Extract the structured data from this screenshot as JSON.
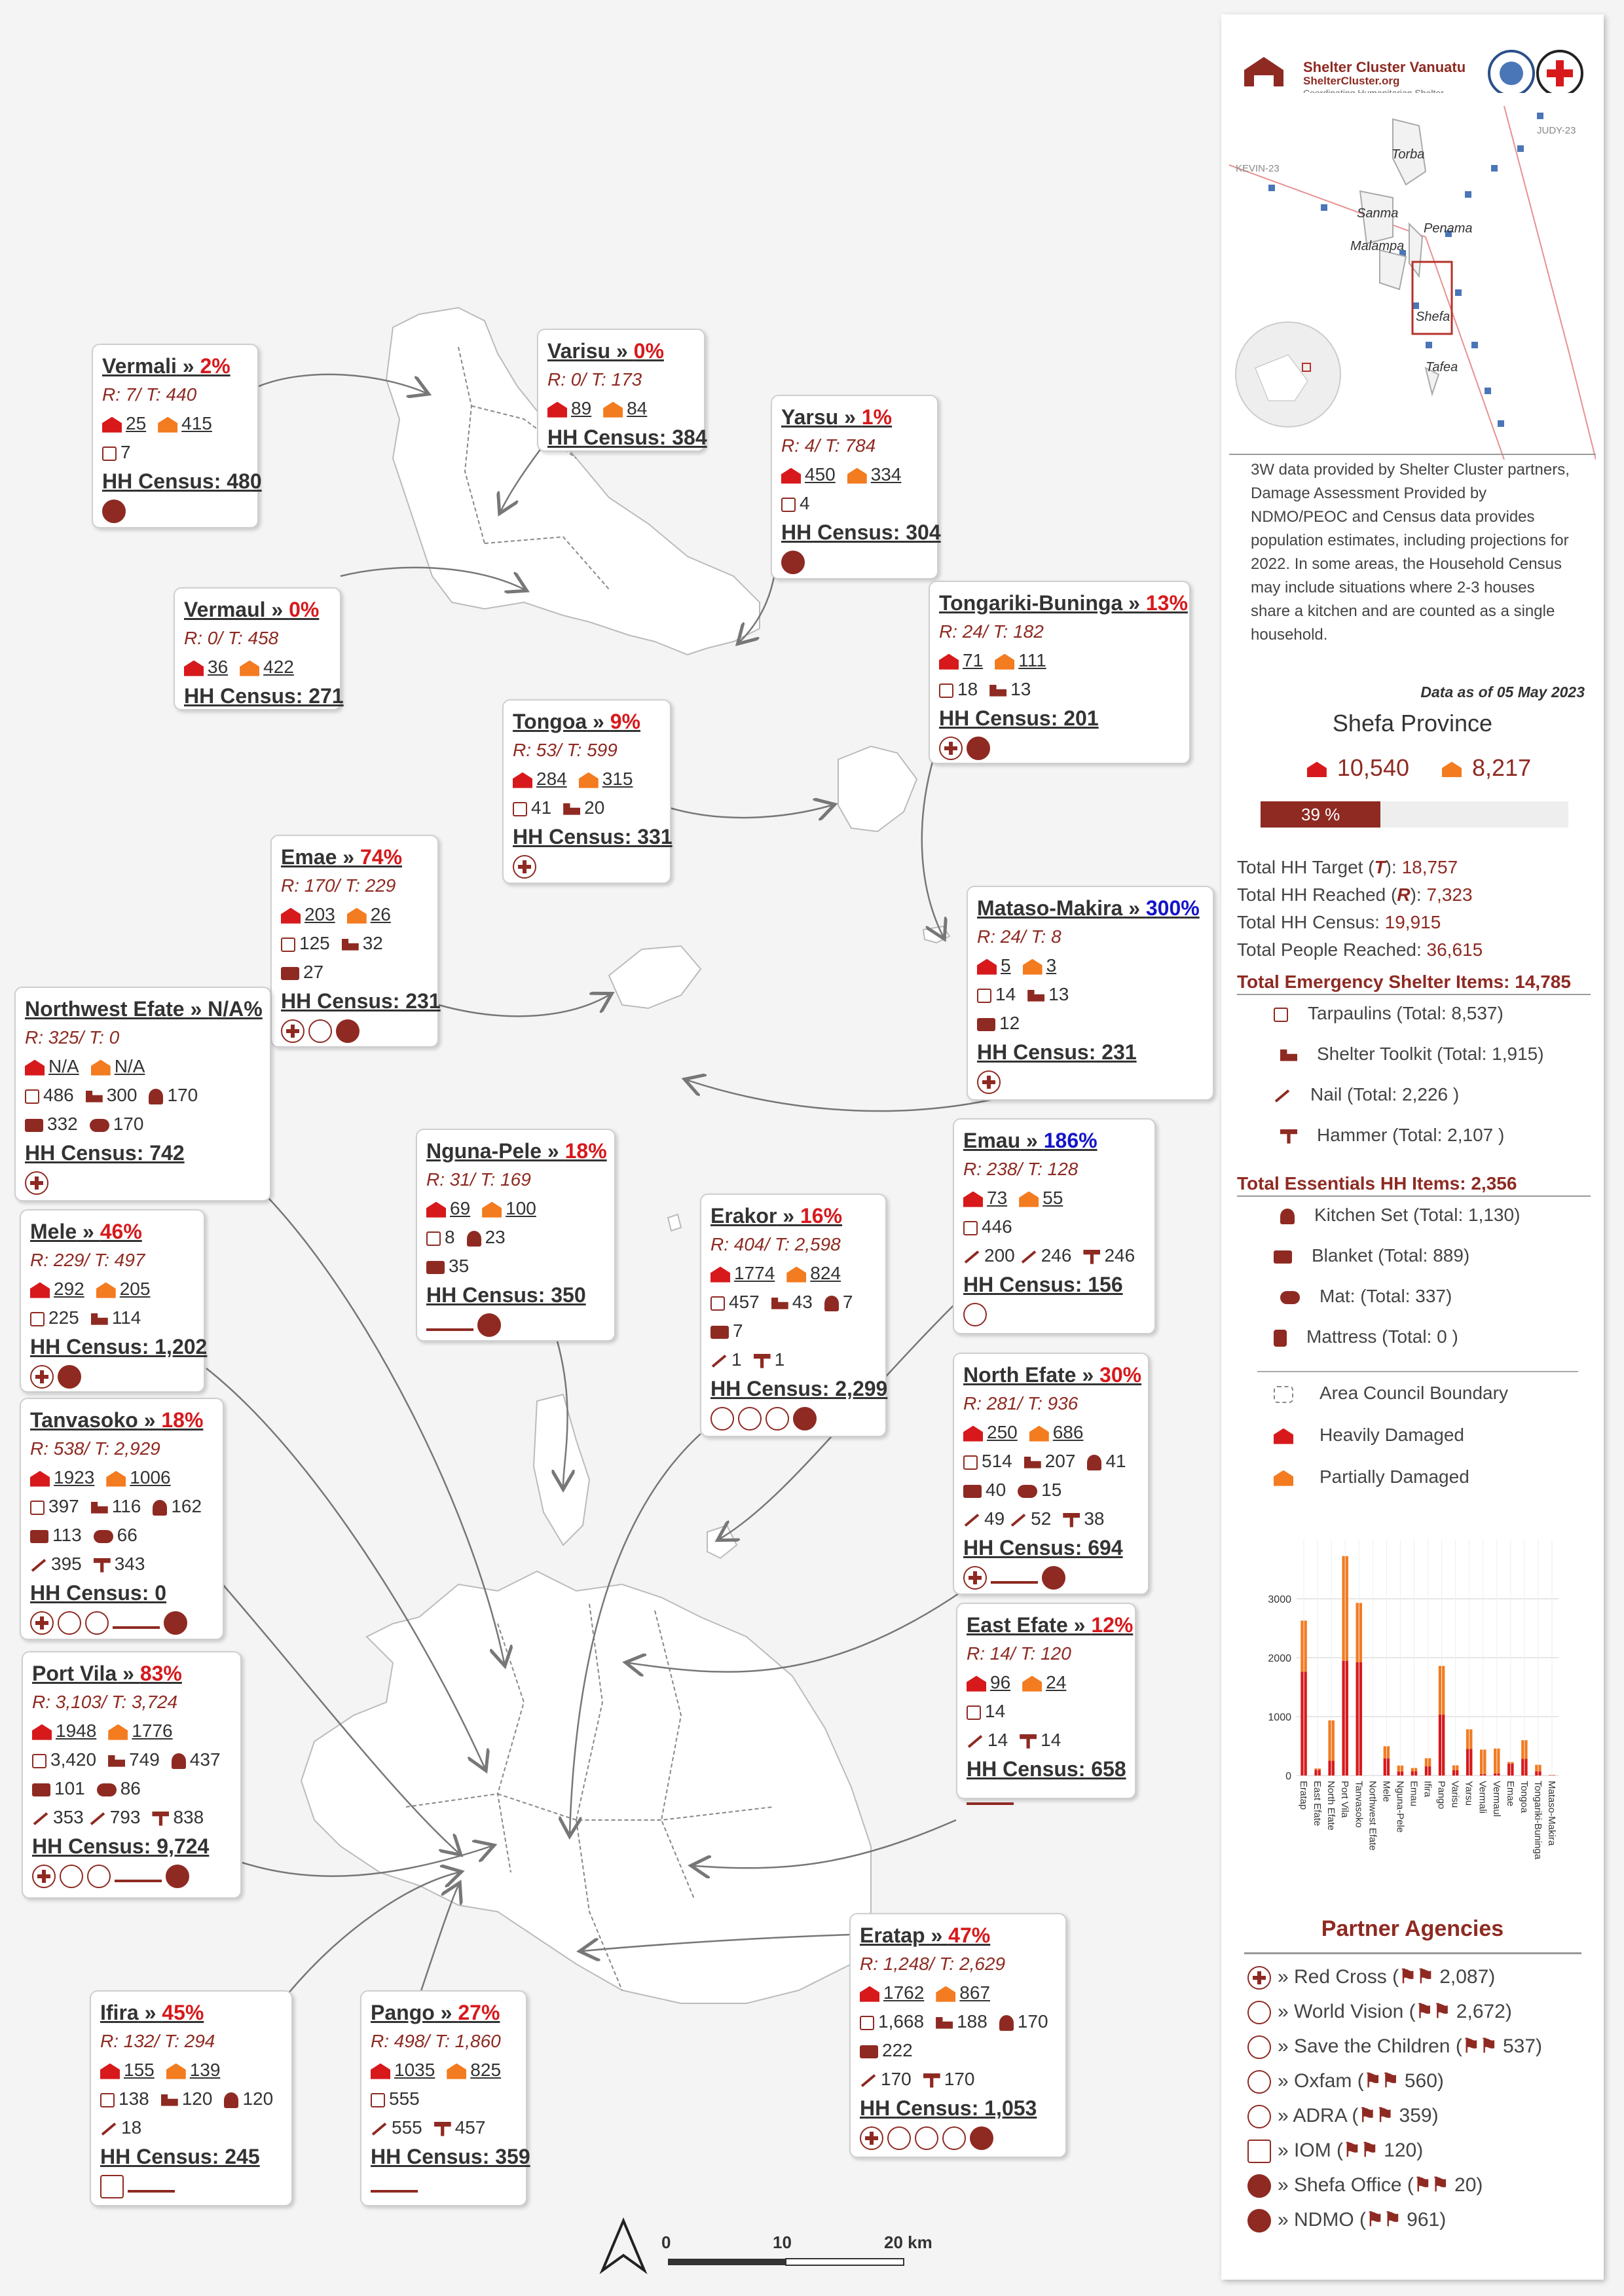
{
  "cards": [
    {
      "id": "vermali",
      "title": "Vermali",
      "pct": "2%",
      "rt": "R: 7/ T: 440",
      "hd": "25",
      "pd": "415",
      "rows": [
        [
          "tp",
          "7"
        ]
      ],
      "census": "HH Census: 480",
      "logos": [
        "nd"
      ]
    },
    {
      "id": "varisu",
      "title": "Varisu",
      "pct": "0%",
      "rt": "R: 0/ T: 173",
      "hd": "89",
      "pd": "84",
      "rows": [],
      "census": "HH Census: 384",
      "logos": []
    },
    {
      "id": "yarsu",
      "title": "Yarsu",
      "pct": "1%",
      "rt": "R: 4/ T: 784",
      "hd": "450",
      "pd": "334",
      "rows": [
        [
          "tp",
          "4"
        ]
      ],
      "census": "HH Census: 304",
      "logos": [
        "nd"
      ]
    },
    {
      "id": "vermaul",
      "title": "Vermaul",
      "pct": "0%",
      "rt": "R: 0/ T: 458",
      "hd": "36",
      "pd": "422",
      "rows": [],
      "census": "HH Census: 271",
      "logos": []
    },
    {
      "id": "tongariki",
      "title": "Tongariki-Buninga",
      "pct": "13%",
      "rt": "R: 24/ T: 182",
      "hd": "71",
      "pd": "111",
      "rows": [
        [
          "tp",
          "18",
          "tk",
          "13"
        ]
      ],
      "census": "HH Census: 201",
      "logos": [
        "rc",
        "nd"
      ]
    },
    {
      "id": "tongoa",
      "title": "Tongoa",
      "pct": "9%",
      "rt": "R: 53/ T: 599",
      "hd": "284",
      "pd": "315",
      "rows": [
        [
          "tp",
          "41",
          "tk",
          "20"
        ]
      ],
      "census": "HH Census: 331",
      "logos": [
        "rc"
      ]
    },
    {
      "id": "emae",
      "title": "Emae",
      "pct": "74%",
      "rt": "R: 170/ T: 229",
      "hd": "203",
      "pd": "26",
      "rows": [
        [
          "tp",
          "125",
          "tk",
          "32"
        ],
        [
          "bk",
          "27"
        ]
      ],
      "census": "HH Census: 231",
      "logos": [
        "rc",
        "ad",
        "nd"
      ]
    },
    {
      "id": "mataso",
      "title": "Mataso-Makira",
      "pct": "300%",
      "blue": true,
      "rt": "R: 24/ T: 8",
      "hd": "5",
      "pd": "3",
      "rows": [
        [
          "tp",
          "14",
          "tk",
          "13"
        ],
        [
          "bk",
          "12"
        ]
      ],
      "census": "HH Census: 231",
      "logos": [
        "rc"
      ]
    },
    {
      "id": "nwefate",
      "title": "Northwest Efate",
      "pct": "N/A%",
      "black": true,
      "rt": "R: 325/ T: 0",
      "hd": "N/A",
      "pd": "N/A",
      "rows": [
        [
          "tp",
          "486",
          "tk",
          "300",
          "ks",
          "170"
        ],
        [
          "bk",
          "332",
          "mt",
          "170"
        ]
      ],
      "census": "HH Census: 742",
      "logos": [
        "rc"
      ]
    },
    {
      "id": "emau",
      "title": "Emau",
      "pct": "186%",
      "blue": true,
      "rt": "R: 238/ T: 128",
      "hd": "73",
      "pd": "55",
      "rows": [
        [
          "tp",
          "446"
        ],
        [
          "nl",
          "200",
          "nl",
          "246",
          "hm",
          "246"
        ]
      ],
      "census": "HH Census: 156",
      "logos": [
        "ad"
      ]
    },
    {
      "id": "nguna",
      "title": "Nguna-Pele",
      "pct": "18%",
      "rt": "R: 31/ T: 169",
      "hd": "69",
      "pd": "100",
      "rows": [
        [
          "tp",
          "8",
          "ks",
          "23"
        ],
        [
          "bk",
          "35"
        ]
      ],
      "census": "HH Census: 350",
      "logos": [
        "wd",
        "nd"
      ]
    },
    {
      "id": "erakor",
      "title": "Erakor",
      "pct": "16%",
      "rt": "R: 404/ T: 2,598",
      "hd": "1774",
      "pd": "824",
      "rows": [
        [
          "tp",
          "457",
          "tk",
          "43",
          "ks",
          "7"
        ],
        [
          "bk",
          "7"
        ],
        [
          "nl",
          "1",
          "hm",
          "1"
        ]
      ],
      "census": "HH Census: 2,299",
      "logos": [
        "ox",
        "sc",
        "ad",
        "nd"
      ]
    },
    {
      "id": "mele",
      "title": "Mele",
      "pct": "46%",
      "rt": "R: 229/ T: 497",
      "hd": "292",
      "pd": "205",
      "rows": [
        [
          "tp",
          "225",
          "tk",
          "114"
        ]
      ],
      "census": "HH Census: 1,202",
      "logos": [
        "rc",
        "nd"
      ]
    },
    {
      "id": "nefate",
      "title": "North Efate",
      "pct": "30%",
      "rt": "R: 281/ T: 936",
      "hd": "250",
      "pd": "686",
      "rows": [
        [
          "tp",
          "514",
          "tk",
          "207",
          "ks",
          "41"
        ],
        [
          "bk",
          "40",
          "mt",
          "15"
        ],
        [
          "nl",
          "49",
          "nl",
          "52",
          "hm",
          "38"
        ]
      ],
      "census": "HH Census: 694",
      "logos": [
        "rc",
        "wd",
        "nd"
      ]
    },
    {
      "id": "tanvasoko",
      "title": "Tanvasoko",
      "pct": "18%",
      "rt": "R: 538/ T: 2,929",
      "hd": "1923",
      "pd": "1006",
      "rows": [
        [
          "tp",
          "397",
          "tk",
          "116",
          "ks",
          "162"
        ],
        [
          "bk",
          "113",
          "mt",
          "66"
        ],
        [
          "nl",
          "395",
          "hm",
          "343"
        ]
      ],
      "census": "HH Census: 0",
      "logos": [
        "rc",
        "sc",
        "ad",
        "wd",
        "nd"
      ]
    },
    {
      "id": "eefate",
      "title": "East Efate",
      "pct": "12%",
      "rt": "R: 14/ T: 120",
      "hd": "96",
      "pd": "24",
      "rows": [
        [
          "tp",
          "14"
        ],
        [
          "nl",
          "14",
          "hm",
          "14"
        ]
      ],
      "census": "HH Census: 658",
      "logos": [
        "wd"
      ]
    },
    {
      "id": "portvila",
      "title": "Port Vila",
      "pct": "83%",
      "rt": "R: 3,103/ T: 3,724",
      "hd": "1948",
      "pd": "1776",
      "rows": [
        [
          "tp",
          "3,420",
          "tk",
          "749",
          "ks",
          "437"
        ],
        [
          "bk",
          "101",
          "mt",
          "86"
        ],
        [
          "nl",
          "353",
          "nl",
          "793",
          "hm",
          "838"
        ]
      ],
      "census": "HH Census: 9,724",
      "logos": [
        "rc",
        "ox",
        "sc",
        "wd",
        "nd"
      ]
    },
    {
      "id": "eratap",
      "title": "Eratap",
      "pct": "47%",
      "rt": "R: 1,248/ T: 2,629",
      "hd": "1762",
      "pd": "867",
      "rows": [
        [
          "tp",
          "1,668",
          "tk",
          "188",
          "ks",
          "170"
        ],
        [
          "bk",
          "222"
        ],
        [
          "nl",
          "170",
          "hm",
          "170"
        ]
      ],
      "census": "HH Census: 1,053",
      "logos": [
        "rc",
        "ox",
        "sc",
        "ad",
        "nd"
      ]
    },
    {
      "id": "ifira",
      "title": "Ifira",
      "pct": "45%",
      "rt": "R: 132/ T: 294",
      "hd": "155",
      "pd": "139",
      "rows": [
        [
          "tp",
          "138",
          "tk",
          "120",
          "ks",
          "120"
        ],
        [
          "nl",
          "18"
        ]
      ],
      "census": "HH Census: 245",
      "logos": [
        "sm",
        "wd"
      ]
    },
    {
      "id": "pango",
      "title": "Pango",
      "pct": "27%",
      "rt": "R: 498/ T: 1,860",
      "hd": "1035",
      "pd": "825",
      "rows": [
        [
          "tp",
          "555"
        ],
        [
          "nl",
          "555",
          "hm",
          "457"
        ]
      ],
      "census": "HH Census: 359",
      "logos": [
        "wd"
      ]
    }
  ],
  "sidebar": {
    "org_title": "Shelter Cluster Vanuatu",
    "org_site": "ShelterCluster.org",
    "org_tag": "Coordinating Humanitarian Shelter",
    "inset_labels": [
      "Torba",
      "Sanma",
      "Penama",
      "Malampa",
      "Shefa",
      "Tafea",
      "KEVIN-23",
      "JUDY-23"
    ],
    "description": "3W data provided by Shelter Cluster partners, Damage Assessment Provided by NDMO/PEOC and Census data provides population estimates, including projections for 2022. In some areas, the Household Census may include situations where 2-3 houses share a kitchen and are counted as a single household.",
    "date": "Data as of 05 May 2023",
    "province": "Shefa Province",
    "heavily_total": "10,540",
    "partially_total": "8,217",
    "progress_label": "39 %",
    "progress": 0.39,
    "stats": [
      {
        "label": "Total HH Target (",
        "key": "T",
        "tail": "): ",
        "value": "18,757"
      },
      {
        "label": "Total HH Reached (",
        "key": "R",
        "tail": "): ",
        "value": "7,323"
      },
      {
        "label": "Total HH Census: ",
        "key": "",
        "tail": "",
        "value": "19,915"
      },
      {
        "label": "Total People Reached: ",
        "key": "",
        "tail": "",
        "value": "36,615"
      }
    ],
    "emergency_title": "Total Emergency Shelter Items: 14,785",
    "emergency_items": [
      {
        "icon": "tp",
        "text": "Tarpaulins (Total: 8,537)"
      },
      {
        "icon": "tk",
        "text": "Shelter Toolkit (Total: 1,915)"
      },
      {
        "icon": "nl",
        "text": "Nail (Total: 2,226 )"
      },
      {
        "icon": "hm",
        "text": "Hammer (Total: 2,107 )"
      }
    ],
    "essentials_title": "Total Essentials HH Items: 2,356",
    "essentials_items": [
      {
        "icon": "ks",
        "text": "Kitchen Set (Total: 1,130)"
      },
      {
        "icon": "bk",
        "text": "Blanket (Total: 889)"
      },
      {
        "icon": "mt",
        "text": "Mat: (Total: 337)"
      },
      {
        "icon": "ms",
        "text": "Mattress (Total: 0 )"
      }
    ],
    "legend": [
      {
        "icon": "boundary",
        "text": "Area Council Boundary"
      },
      {
        "icon": "hd",
        "text": "Heavily Damaged"
      },
      {
        "icon": "pd",
        "text": "Partially Damaged"
      }
    ],
    "partners_title": "Partner Agencies",
    "partners": [
      {
        "logo": "rc",
        "name": "» Red Cross (",
        "count": "2,087)"
      },
      {
        "logo": "wd",
        "name": "» World Vision (",
        "count": "2,672)"
      },
      {
        "logo": "sc",
        "name": "» Save the Children (",
        "count": "537)"
      },
      {
        "logo": "ox",
        "name": "» Oxfam (",
        "count": "560)"
      },
      {
        "logo": "ad",
        "name": "» ADRA (",
        "count": "359)"
      },
      {
        "logo": "sm",
        "name": "» IOM (",
        "count": "120)"
      },
      {
        "logo": "nd",
        "name": "» Shefa Office (",
        "count": "20)"
      },
      {
        "logo": "nd",
        "name": "» NDMO (",
        "count": "961)"
      }
    ]
  },
  "chart_data": {
    "type": "bar",
    "stacked": true,
    "categories": [
      "Eratap",
      "East Efate",
      "North Efate",
      "Port Vila",
      "Tanvasoko",
      "Northwest Efate",
      "Mele",
      "Nguna-Pele",
      "Emau",
      "Ifira",
      "Pango",
      "Varisu",
      "Yarsu",
      "Vermali",
      "Vermaul",
      "Emae",
      "Tongoa",
      "Tongariki-Buninga",
      "Mataso-Makira"
    ],
    "series": [
      {
        "name": "Heavily Damaged",
        "color": "#d7191c",
        "values": [
          1762,
          96,
          250,
          1948,
          1923,
          0,
          292,
          69,
          73,
          155,
          1035,
          89,
          450,
          25,
          36,
          203,
          284,
          71,
          5
        ]
      },
      {
        "name": "Partially Damaged",
        "color": "#f37b20",
        "values": [
          867,
          24,
          686,
          1776,
          1006,
          0,
          205,
          100,
          55,
          139,
          825,
          84,
          334,
          415,
          422,
          26,
          315,
          111,
          3
        ]
      }
    ],
    "yticks": [
      "0",
      "1000",
      "2000",
      "3000"
    ],
    "ylim": [
      0,
      4000
    ]
  },
  "scale": {
    "labels": [
      "0",
      "10",
      "20 km"
    ]
  }
}
